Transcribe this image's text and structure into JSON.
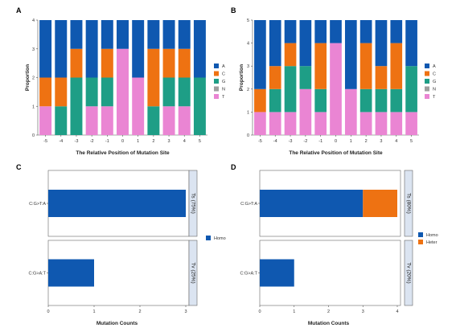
{
  "chart_data": [
    {
      "panel": "A",
      "type": "bar",
      "stacked": true,
      "xlabel": "The Relative Position of Mutation Site",
      "ylabel": "Proportion",
      "ylim": [
        0,
        4
      ],
      "yticks": [
        "0",
        "1",
        "2",
        "3",
        "4"
      ],
      "categories": [
        "-5",
        "-4",
        "-3",
        "-2",
        "-1",
        "0",
        "1",
        "2",
        "3",
        "4",
        "5"
      ],
      "series": [
        {
          "name": "T",
          "color": "#ea85d3",
          "values": [
            1,
            0,
            0,
            1,
            1,
            3,
            2,
            0,
            1,
            1,
            0
          ]
        },
        {
          "name": "N",
          "color": "#9e9e9e",
          "values": [
            0,
            0,
            0,
            0,
            0,
            0,
            0,
            0,
            0,
            0,
            0
          ]
        },
        {
          "name": "G",
          "color": "#1e9e86",
          "values": [
            0,
            1,
            2,
            1,
            1,
            0,
            0,
            1,
            1,
            1,
            2
          ]
        },
        {
          "name": "C",
          "color": "#ee7212",
          "values": [
            1,
            1,
            1,
            0,
            1,
            0,
            0,
            2,
            1,
            1,
            0
          ]
        },
        {
          "name": "A",
          "color": "#0f58b0",
          "values": [
            2,
            2,
            1,
            2,
            1,
            1,
            2,
            1,
            1,
            1,
            2
          ]
        }
      ],
      "legend_order": [
        "A",
        "C",
        "G",
        "N",
        "T"
      ],
      "legend": "right",
      "grid": false
    },
    {
      "panel": "B",
      "type": "bar",
      "stacked": true,
      "xlabel": "The Relative Position of Mutation Site",
      "ylabel": "Proportion",
      "ylim": [
        0,
        5
      ],
      "yticks": [
        "0",
        "1",
        "2",
        "3",
        "4",
        "5"
      ],
      "categories": [
        "-5",
        "-4",
        "-3",
        "-2",
        "-1",
        "0",
        "1",
        "2",
        "3",
        "4",
        "5"
      ],
      "series": [
        {
          "name": "T",
          "color": "#ea85d3",
          "values": [
            1,
            1,
            1,
            2,
            1,
            4,
            2,
            1,
            1,
            1,
            1
          ]
        },
        {
          "name": "N",
          "color": "#9e9e9e",
          "values": [
            0,
            0,
            0,
            0,
            0,
            0,
            0,
            0,
            0,
            0,
            0
          ]
        },
        {
          "name": "G",
          "color": "#1e9e86",
          "values": [
            0,
            1,
            2,
            1,
            1,
            0,
            0,
            1,
            1,
            1,
            2
          ]
        },
        {
          "name": "C",
          "color": "#ee7212",
          "values": [
            1,
            1,
            1,
            0,
            2,
            0,
            0,
            2,
            1,
            2,
            0
          ]
        },
        {
          "name": "A",
          "color": "#0f58b0",
          "values": [
            3,
            2,
            1,
            2,
            1,
            1,
            3,
            1,
            2,
            1,
            2
          ]
        }
      ],
      "legend_order": [
        "A",
        "C",
        "G",
        "N",
        "T"
      ],
      "legend": "right",
      "grid": false
    },
    {
      "panel": "C",
      "type": "bar",
      "orientation": "horizontal",
      "stacked": true,
      "xlabel": "Mutation Counts",
      "xlim": [
        0,
        3
      ],
      "xticks": [
        "0",
        "1",
        "2",
        "3"
      ],
      "facets": [
        {
          "strip": "Ts (75%)",
          "category": "C:G>T:A",
          "values": {
            "Homo": 3
          }
        },
        {
          "strip": "Tv (25%)",
          "category": "C:G>A:T",
          "values": {
            "Homo": 1
          }
        }
      ],
      "series": [
        {
          "name": "Homo",
          "color": "#0f58b0"
        }
      ],
      "legend": "right",
      "grid": false
    },
    {
      "panel": "D",
      "type": "bar",
      "orientation": "horizontal",
      "stacked": true,
      "xlabel": "Mutation Counts",
      "xlim": [
        0,
        4
      ],
      "xticks": [
        "0",
        "1",
        "2",
        "3",
        "4"
      ],
      "facets": [
        {
          "strip": "Ts (80%)",
          "category": "C:G>T:A",
          "values": {
            "Homo": 3,
            "Heter": 1
          }
        },
        {
          "strip": "Tv (20%)",
          "category": "C:G>A:T",
          "values": {
            "Homo": 1,
            "Heter": 0
          }
        }
      ],
      "series": [
        {
          "name": "Homo",
          "color": "#0f58b0"
        },
        {
          "name": "Heter",
          "color": "#ee7212"
        }
      ],
      "legend": "right",
      "grid": false
    }
  ]
}
